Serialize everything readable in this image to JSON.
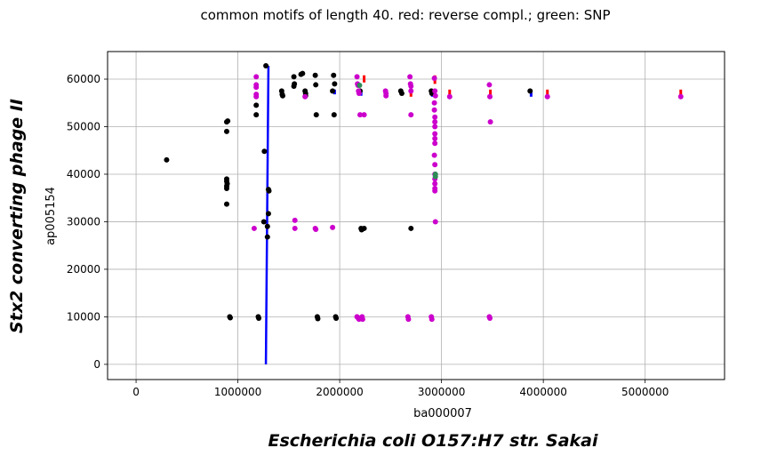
{
  "chart_data": {
    "type": "scatter",
    "title": "common motifs of length 40. red: reverse compl.; green: SNP",
    "xlabel": "ba000007",
    "ylabel": "ap005154",
    "bottom_label": "Escherichia coli O157:H7 str. Sakai",
    "left_label": "Stx2 converting phage II",
    "xlim": [
      -280000,
      5780000
    ],
    "ylim": [
      -3200,
      65800
    ],
    "xticks": [
      0,
      1000000,
      2000000,
      3000000,
      4000000,
      5000000
    ],
    "yticks": [
      0,
      10000,
      20000,
      30000,
      40000,
      50000,
      60000
    ],
    "grid": true,
    "colors": {
      "forward": "#000000",
      "reverse_complement": "#cc00cc",
      "snp": "#2e8b57",
      "main_diagonal": "#0000ff",
      "reverse_tick": "#ff0000"
    },
    "series": [
      {
        "color": "forward",
        "points": [
          [
            300000,
            43000
          ],
          [
            890000,
            51000
          ],
          [
            900000,
            51200
          ],
          [
            890000,
            49000
          ],
          [
            890000,
            39000
          ],
          [
            890000,
            38500
          ],
          [
            895000,
            38000
          ],
          [
            890000,
            37500
          ],
          [
            890000,
            37000
          ],
          [
            890000,
            33700
          ],
          [
            920000,
            10000
          ],
          [
            925000,
            9800
          ],
          [
            1180000,
            54500
          ],
          [
            1180000,
            52500
          ],
          [
            1200000,
            10000
          ],
          [
            1205000,
            9700
          ],
          [
            1255000,
            30000
          ],
          [
            1260000,
            44800
          ],
          [
            1275000,
            62800
          ],
          [
            1300000,
            36800
          ],
          [
            1305000,
            36500
          ],
          [
            1300000,
            31700
          ],
          [
            1290000,
            26800
          ],
          [
            1290000,
            29000
          ],
          [
            1430000,
            57500
          ],
          [
            1435000,
            56800
          ],
          [
            1440000,
            56500
          ],
          [
            1550000,
            60500
          ],
          [
            1555000,
            59000
          ],
          [
            1550000,
            58500
          ],
          [
            1620000,
            61000
          ],
          [
            1635000,
            61200
          ],
          [
            1660000,
            57500
          ],
          [
            1665000,
            57000
          ],
          [
            1665000,
            56500
          ],
          [
            1760000,
            60800
          ],
          [
            1765000,
            58800
          ],
          [
            1770000,
            52500
          ],
          [
            1780000,
            10000
          ],
          [
            1785000,
            9600
          ],
          [
            1930000,
            57500
          ],
          [
            1940000,
            60800
          ],
          [
            1945000,
            52500
          ],
          [
            1950000,
            59000
          ],
          [
            1960000,
            10000
          ],
          [
            1965000,
            9700
          ],
          [
            2200000,
            57500
          ],
          [
            2210000,
            28600
          ],
          [
            2215000,
            28300
          ],
          [
            2240000,
            28600
          ],
          [
            2600000,
            57500
          ],
          [
            2610000,
            57000
          ],
          [
            2700000,
            28600
          ],
          [
            2900000,
            57500
          ],
          [
            2905000,
            57000
          ],
          [
            3870000,
            57500
          ]
        ]
      },
      {
        "color": "reverse_complement",
        "points": [
          [
            1180000,
            60500
          ],
          [
            1180000,
            58800
          ],
          [
            1180000,
            58300
          ],
          [
            1180000,
            56800
          ],
          [
            1180000,
            56300
          ],
          [
            1160000,
            28600
          ],
          [
            1560000,
            30300
          ],
          [
            1560000,
            28600
          ],
          [
            1660000,
            56300
          ],
          [
            1760000,
            28600
          ],
          [
            1765000,
            28400
          ],
          [
            1930000,
            28800
          ],
          [
            2170000,
            60500
          ],
          [
            2175000,
            59000
          ],
          [
            2180000,
            58700
          ],
          [
            2185000,
            57500
          ],
          [
            2190000,
            57000
          ],
          [
            2200000,
            52500
          ],
          [
            2240000,
            52500
          ],
          [
            2170000,
            10000
          ],
          [
            2180000,
            9800
          ],
          [
            2190000,
            9500
          ],
          [
            2220000,
            10000
          ],
          [
            2225000,
            9500
          ],
          [
            2450000,
            57500
          ],
          [
            2455000,
            57000
          ],
          [
            2455000,
            56500
          ],
          [
            2670000,
            10000
          ],
          [
            2675000,
            9500
          ],
          [
            2690000,
            60500
          ],
          [
            2695000,
            59000
          ],
          [
            2700000,
            58500
          ],
          [
            2700000,
            57500
          ],
          [
            2700000,
            52500
          ],
          [
            2900000,
            10000
          ],
          [
            2905000,
            9500
          ],
          [
            2930000,
            60200
          ],
          [
            2935000,
            57500
          ],
          [
            2940000,
            56500
          ],
          [
            2930000,
            55000
          ],
          [
            2930000,
            53500
          ],
          [
            2935000,
            52000
          ],
          [
            2935000,
            51000
          ],
          [
            2935000,
            50000
          ],
          [
            2935000,
            48500
          ],
          [
            2935000,
            47500
          ],
          [
            2935000,
            46500
          ],
          [
            2930000,
            44000
          ],
          [
            2935000,
            42000
          ],
          [
            2935000,
            40000
          ],
          [
            2935000,
            39000
          ],
          [
            2935000,
            38000
          ],
          [
            2935000,
            37000
          ],
          [
            2935000,
            36500
          ],
          [
            2940000,
            30000
          ],
          [
            3080000,
            56300
          ],
          [
            3470000,
            58800
          ],
          [
            3475000,
            56300
          ],
          [
            3480000,
            51000
          ],
          [
            3470000,
            10000
          ],
          [
            3475000,
            9700
          ],
          [
            4040000,
            56300
          ],
          [
            5350000,
            56300
          ]
        ]
      },
      {
        "color": "snp",
        "points": [
          [
            2940000,
            40000
          ],
          [
            2940000,
            39500
          ],
          [
            2195000,
            58700
          ]
        ]
      }
    ],
    "diagonal_segments": [
      [
        [
          1275000,
          0
        ],
        [
          1300000,
          62800
        ]
      ]
    ],
    "short_segments": [
      {
        "color": "main_diagonal",
        "points": [
          [
            1950000,
            56800
          ],
          [
            1950000,
            57800
          ]
        ]
      },
      {
        "color": "main_diagonal",
        "points": [
          [
            2210000,
            56500
          ],
          [
            2210000,
            57500
          ]
        ]
      },
      {
        "color": "main_diagonal",
        "points": [
          [
            2910000,
            56300
          ],
          [
            2910000,
            57500
          ]
        ]
      },
      {
        "color": "main_diagonal",
        "points": [
          [
            3880000,
            56300
          ],
          [
            3880000,
            57500
          ]
        ]
      },
      {
        "color": "reverse_tick",
        "points": [
          [
            2240000,
            59300
          ],
          [
            2240000,
            60800
          ]
        ]
      },
      {
        "color": "reverse_tick",
        "points": [
          [
            2700000,
            56300
          ],
          [
            2700000,
            57800
          ]
        ]
      },
      {
        "color": "reverse_tick",
        "points": [
          [
            2935000,
            59000
          ],
          [
            2935000,
            60800
          ]
        ]
      },
      {
        "color": "reverse_tick",
        "points": [
          [
            3080000,
            56300
          ],
          [
            3080000,
            57800
          ]
        ]
      },
      {
        "color": "reverse_tick",
        "points": [
          [
            3480000,
            56300
          ],
          [
            3480000,
            57800
          ]
        ]
      },
      {
        "color": "reverse_tick",
        "points": [
          [
            4040000,
            56300
          ],
          [
            4040000,
            57800
          ]
        ]
      },
      {
        "color": "reverse_tick",
        "points": [
          [
            5350000,
            56300
          ],
          [
            5350000,
            57800
          ]
        ]
      }
    ]
  }
}
